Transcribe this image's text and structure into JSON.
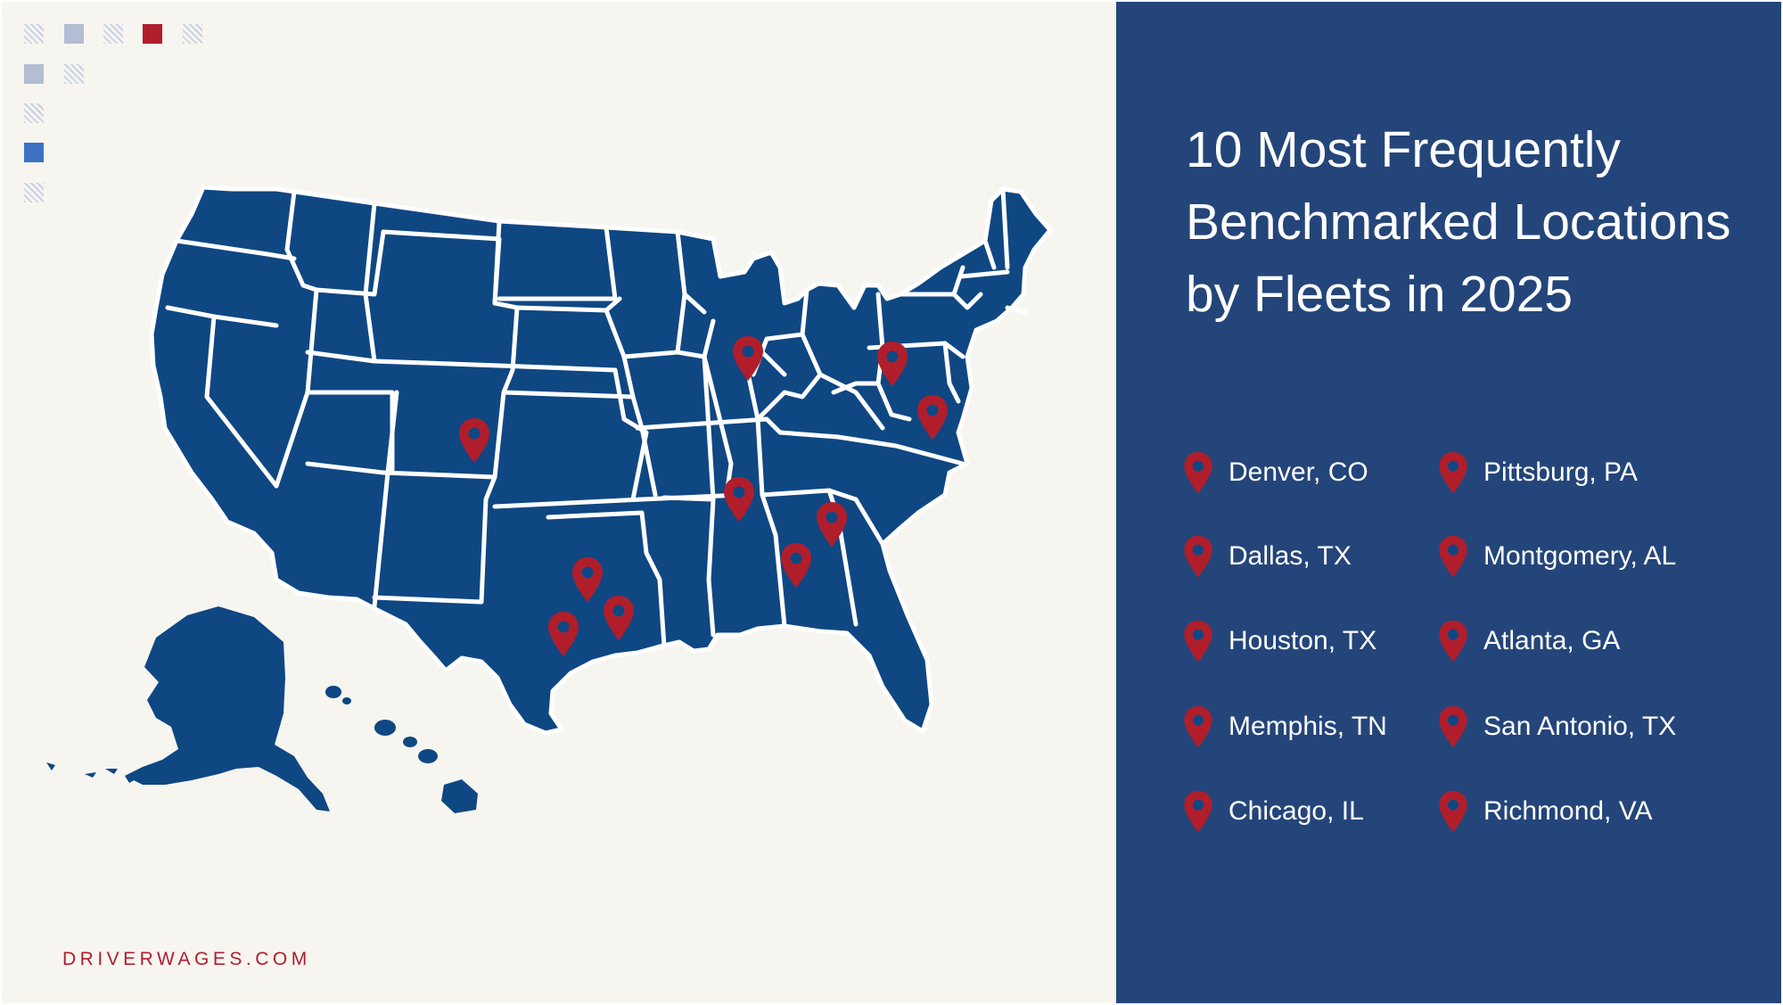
{
  "title": "10 Most Frequently Benchmarked Locations by Fleets in 2025",
  "locations": [
    "Denver, CO",
    "Dallas, TX",
    "Houston, TX",
    "Memphis, TN",
    "Chicago, IL",
    "Pittsburg, PA",
    "Montgomery, AL",
    "Atlanta, GA",
    "San Antonio, TX",
    "Richmond, VA"
  ],
  "footer": "DRIVERWAGES.COM",
  "colors": {
    "background": "#f7f5f0",
    "panel": "#24457a",
    "map_fill": "#0f4783",
    "state_border": "#ffffff",
    "pin": "#b01e2b",
    "accent_blue": "#3b72c4",
    "muted_square": "#b3bdd3"
  },
  "icons": {
    "pin": "map-pin-icon"
  }
}
